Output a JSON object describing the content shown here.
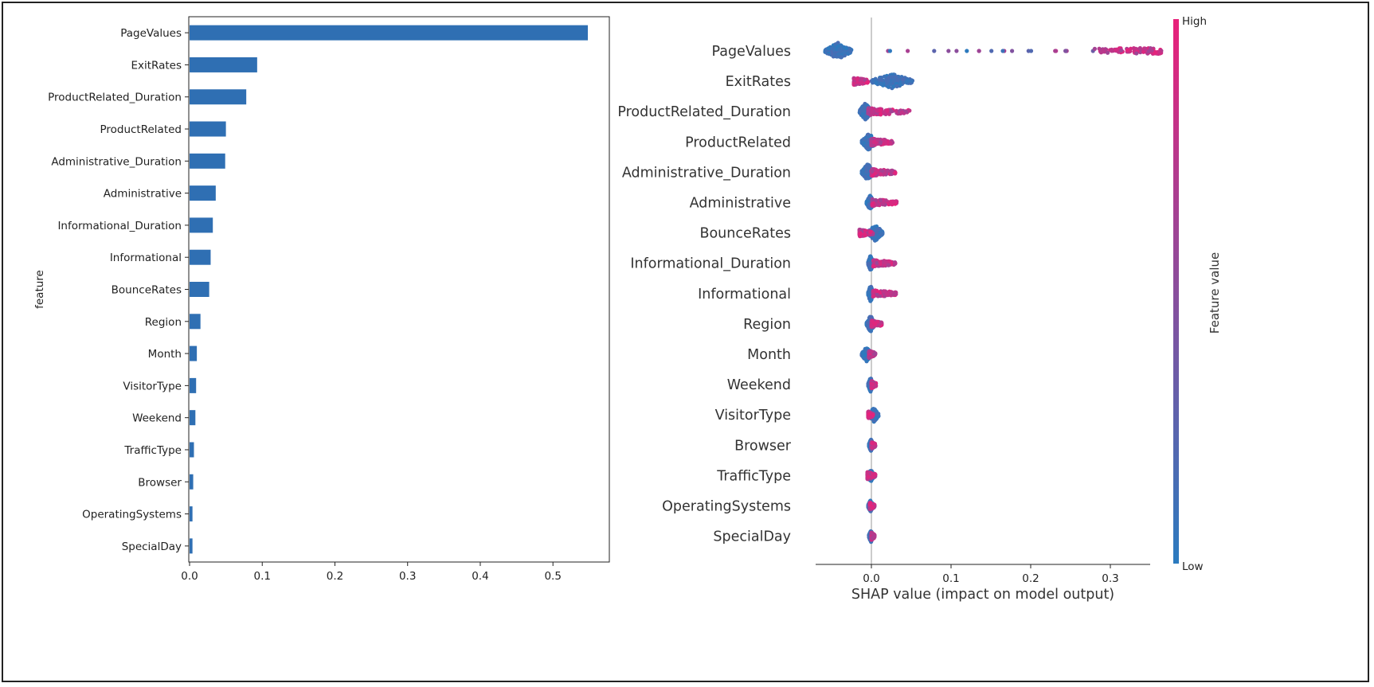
{
  "colors": {
    "bar": "#2f6fb3",
    "low": "#2b7bbf",
    "high": "#e8217a",
    "axis": "#222222",
    "zero_line": "#999999"
  },
  "chart_data": [
    {
      "type": "bar",
      "orientation": "horizontal",
      "ylabel": "feature",
      "xlabel": "",
      "xlim": [
        0,
        0.57
      ],
      "x_ticks": [
        "0.0",
        "0.1",
        "0.2",
        "0.3",
        "0.4",
        "0.5"
      ],
      "x_tick_values": [
        0,
        0.1,
        0.2,
        0.3,
        0.4,
        0.5
      ],
      "grid": false,
      "categories": [
        "PageValues",
        "ExitRates",
        "ProductRelated_Duration",
        "ProductRelated",
        "Administrative_Duration",
        "Administrative",
        "Informational_Duration",
        "Informational",
        "BounceRates",
        "Region",
        "Month",
        "VisitorType",
        "Weekend",
        "TrafficType",
        "Browser",
        "OperatingSystems",
        "SpecialDay"
      ],
      "values": [
        0.548,
        0.093,
        0.078,
        0.05,
        0.049,
        0.036,
        0.032,
        0.029,
        0.027,
        0.015,
        0.01,
        0.009,
        0.008,
        0.006,
        0.005,
        0.004,
        0.004
      ]
    },
    {
      "type": "scatter",
      "subtype": "shap-beeswarm",
      "xlabel": "SHAP value (impact on model output)",
      "xlim": [
        -0.075,
        0.385
      ],
      "x_ticks": [
        "0.0",
        "0.1",
        "0.2",
        "0.3"
      ],
      "x_tick_values": [
        0,
        0.1,
        0.2,
        0.3
      ],
      "colorbar": {
        "label": "Feature value",
        "high_label": "High",
        "low_label": "Low"
      },
      "features": [
        {
          "name": "PageValues",
          "low_range": [
            -0.058,
            -0.025
          ],
          "high_range": [
            0.012,
            0.365
          ],
          "high_dense_from": 0.28,
          "low_spread": 0.038
        },
        {
          "name": "ExitRates",
          "low_range": [
            0.0,
            0.052
          ],
          "high_range": [
            -0.022,
            -0.004
          ],
          "high_dense_from": -0.022,
          "low_spread": 0.01
        },
        {
          "name": "ProductRelated_Duration",
          "low_range": [
            -0.015,
            0.0
          ],
          "high_range": [
            -0.004,
            0.049
          ],
          "high_dense_from": -0.004,
          "low_spread": 0.024
        },
        {
          "name": "ProductRelated",
          "low_range": [
            -0.012,
            0.006
          ],
          "high_range": [
            0.0,
            0.027
          ],
          "high_dense_from": 0.0,
          "low_spread": 0.018
        },
        {
          "name": "Administrative_Duration",
          "low_range": [
            -0.012,
            0.003
          ],
          "high_range": [
            0.0,
            0.03
          ],
          "high_dense_from": 0.0,
          "low_spread": 0.012
        },
        {
          "name": "Administrative",
          "low_range": [
            -0.006,
            0.003
          ],
          "high_range": [
            0.001,
            0.032
          ],
          "high_dense_from": 0.001,
          "low_spread": 0.01
        },
        {
          "name": "BounceRates",
          "low_range": [
            -0.004,
            0.014
          ],
          "high_range": [
            -0.015,
            0.002
          ],
          "high_dense_from": -0.015,
          "low_spread": 0.016
        },
        {
          "name": "Informational_Duration",
          "low_range": [
            -0.004,
            0.002
          ],
          "high_range": [
            0.002,
            0.03
          ],
          "high_dense_from": 0.002,
          "low_spread": 0.012
        },
        {
          "name": "Informational",
          "low_range": [
            -0.004,
            0.002
          ],
          "high_range": [
            0.002,
            0.031
          ],
          "high_dense_from": 0.002,
          "low_spread": 0.012
        },
        {
          "name": "Region",
          "low_range": [
            -0.006,
            0.004
          ],
          "high_range": [
            0.0,
            0.013
          ],
          "high_dense_from": 0.0,
          "low_spread": 0.012
        },
        {
          "name": "Month",
          "low_range": [
            -0.012,
            0.0
          ],
          "high_range": [
            -0.003,
            0.005
          ],
          "high_dense_from": -0.003,
          "low_spread": 0.01
        },
        {
          "name": "Weekend",
          "low_range": [
            -0.004,
            0.002
          ],
          "high_range": [
            0.0,
            0.006
          ],
          "high_dense_from": 0.0,
          "low_spread": 0.01
        },
        {
          "name": "VisitorType",
          "low_range": [
            -0.003,
            0.009
          ],
          "high_range": [
            -0.004,
            0.002
          ],
          "high_dense_from": -0.004,
          "low_spread": 0.01
        },
        {
          "name": "Browser",
          "low_range": [
            -0.003,
            0.002
          ],
          "high_range": [
            0.0,
            0.005
          ],
          "high_dense_from": 0.0,
          "low_spread": 0.008
        },
        {
          "name": "TrafficType",
          "low_range": [
            -0.004,
            0.003
          ],
          "high_range": [
            -0.005,
            0.005
          ],
          "high_dense_from": -0.005,
          "low_spread": 0.008
        },
        {
          "name": "OperatingSystems",
          "low_range": [
            -0.004,
            0.002
          ],
          "high_range": [
            -0.002,
            0.004
          ],
          "high_dense_from": -0.002,
          "low_spread": 0.008
        },
        {
          "name": "SpecialDay",
          "low_range": [
            -0.003,
            0.002
          ],
          "high_range": [
            0.0,
            0.004
          ],
          "high_dense_from": 0.0,
          "low_spread": 0.008
        }
      ]
    }
  ]
}
